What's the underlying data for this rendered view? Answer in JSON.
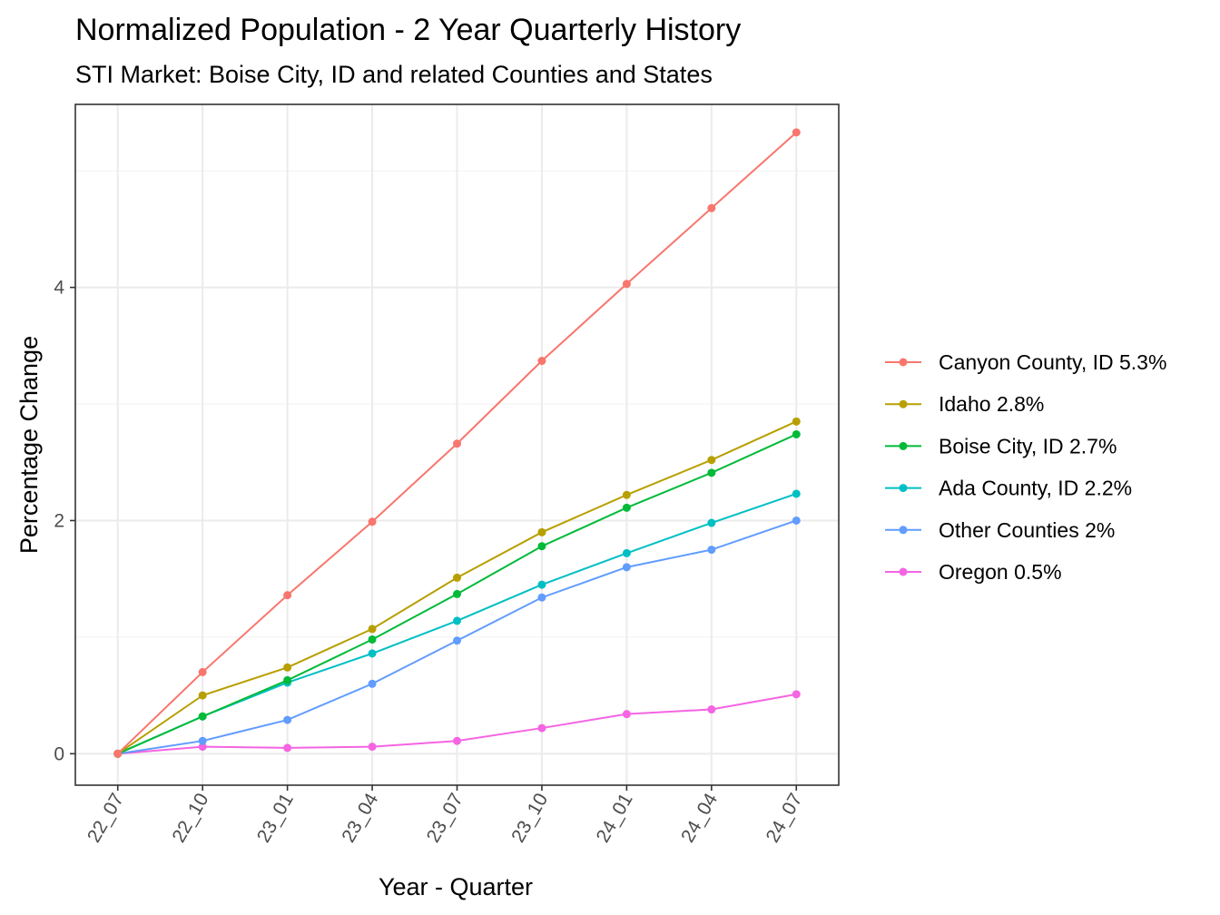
{
  "chart_data": {
    "type": "line",
    "title": "Normalized Population - 2 Year Quarterly History",
    "subtitle": "STI Market: Boise City, ID and related Counties and States",
    "xlabel": "Year - Quarter",
    "ylabel": "Percentage Change",
    "categories": [
      "22_07",
      "22_10",
      "23_01",
      "23_04",
      "23_07",
      "23_10",
      "24_01",
      "24_04",
      "24_07"
    ],
    "ylim": [
      -0.27,
      5.57
    ],
    "yticks": [
      0,
      2,
      4
    ],
    "grid": true,
    "legend_position": "right",
    "series": [
      {
        "name": "Canyon County, ID 5.3%",
        "color": "#F8766D",
        "values": [
          0,
          0.7,
          1.36,
          1.99,
          2.66,
          3.37,
          4.03,
          4.68,
          5.33
        ]
      },
      {
        "name": "Idaho 2.8%",
        "color": "#B79F00",
        "values": [
          0,
          0.5,
          0.74,
          1.07,
          1.51,
          1.9,
          2.22,
          2.52,
          2.85
        ]
      },
      {
        "name": "Boise City, ID 2.7%",
        "color": "#00BA38",
        "values": [
          0,
          0.32,
          0.63,
          0.98,
          1.37,
          1.78,
          2.11,
          2.41,
          2.74
        ]
      },
      {
        "name": "Ada County, ID 2.2%",
        "color": "#00BFC4",
        "values": [
          0,
          0.32,
          0.61,
          0.86,
          1.14,
          1.45,
          1.72,
          1.98,
          2.23
        ]
      },
      {
        "name": "Other Counties 2%",
        "color": "#619CFF",
        "values": [
          0,
          0.11,
          0.29,
          0.6,
          0.97,
          1.34,
          1.6,
          1.75,
          2.0
        ]
      },
      {
        "name": "Oregon 0.5%",
        "color": "#F564E3",
        "values": [
          0,
          0.06,
          0.05,
          0.06,
          0.11,
          0.22,
          0.34,
          0.38,
          0.51
        ]
      }
    ]
  }
}
